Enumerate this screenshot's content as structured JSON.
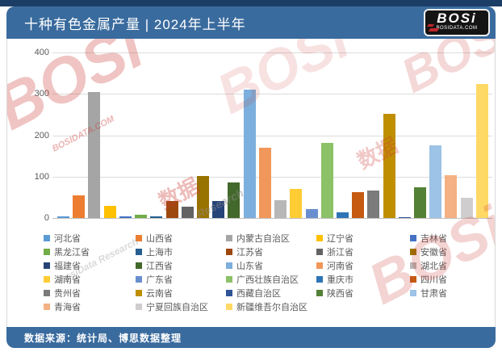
{
  "header": {
    "title": "十种有色金属产量 | 2024年上半年",
    "logo": {
      "name": "BOSi",
      "site": "BOSIDATA.COM"
    }
  },
  "footer": {
    "source": "数据来源：统计局、博思数据整理"
  },
  "watermarks": [
    "BOSi",
    "BOSIDATA.COM",
    "BOSi",
    "BOSi",
    "BOSi",
    "数据",
    "数据",
    "Research",
    "BosiData Research"
  ],
  "colors": {
    "accent_blue": "#3A6B9E",
    "top_strip": "#1C3E66",
    "logo_red": "#C0272D",
    "axis_text": "#595959"
  },
  "chart_data": {
    "type": "bar",
    "title": "十种有色金属产量 | 2024年上半年",
    "xlabel": "",
    "ylabel": "",
    "ylim": [
      0,
      400
    ],
    "yticks": [
      0,
      100,
      200,
      300,
      400
    ],
    "grid": true,
    "legend_position": "bottom",
    "series": [
      {
        "name": "河北省",
        "value": 3,
        "color": "#5B9BD5"
      },
      {
        "name": "山西省",
        "value": 55,
        "color": "#ED7D31"
      },
      {
        "name": "内蒙古自治区",
        "value": 305,
        "color": "#A5A5A5"
      },
      {
        "name": "辽宁省",
        "value": 30,
        "color": "#FFC000"
      },
      {
        "name": "吉林省",
        "value": 3,
        "color": "#4472C4"
      },
      {
        "name": "黑龙江省",
        "value": 8,
        "color": "#70AD47"
      },
      {
        "name": "上海市",
        "value": 3,
        "color": "#255E91"
      },
      {
        "name": "江苏省",
        "value": 40,
        "color": "#9E480E"
      },
      {
        "name": "浙江省",
        "value": 28,
        "color": "#636363"
      },
      {
        "name": "安徽省",
        "value": 102,
        "color": "#997300"
      },
      {
        "name": "福建省",
        "value": 40,
        "color": "#264478"
      },
      {
        "name": "江西省",
        "value": 86,
        "color": "#43682B"
      },
      {
        "name": "山东省",
        "value": 311,
        "color": "#7CAFDD"
      },
      {
        "name": "河南省",
        "value": 170,
        "color": "#F1975A"
      },
      {
        "name": "湖北省",
        "value": 43,
        "color": "#B7B7B7"
      },
      {
        "name": "湖南省",
        "value": 71,
        "color": "#FFCD33"
      },
      {
        "name": "广东省",
        "value": 22,
        "color": "#698ED0"
      },
      {
        "name": "广西壮族自治区",
        "value": 181,
        "color": "#8CC168"
      },
      {
        "name": "重庆市",
        "value": 14,
        "color": "#2E75B6"
      },
      {
        "name": "四川省",
        "value": 62,
        "color": "#C55A11"
      },
      {
        "name": "贵州省",
        "value": 66,
        "color": "#7B7B7B"
      },
      {
        "name": "云南省",
        "value": 251,
        "color": "#BF8F00"
      },
      {
        "name": "西藏自治区",
        "value": 2,
        "color": "#2F5597"
      },
      {
        "name": "陕西省",
        "value": 74,
        "color": "#538135"
      },
      {
        "name": "甘肃省",
        "value": 175,
        "color": "#9DC3E6"
      },
      {
        "name": "青海省",
        "value": 104,
        "color": "#F4B183"
      },
      {
        "name": "宁夏回族自治区",
        "value": 49,
        "color": "#CFCDCD"
      },
      {
        "name": "新疆维吾尔自治区",
        "value": 323,
        "color": "#FFD966"
      }
    ]
  }
}
